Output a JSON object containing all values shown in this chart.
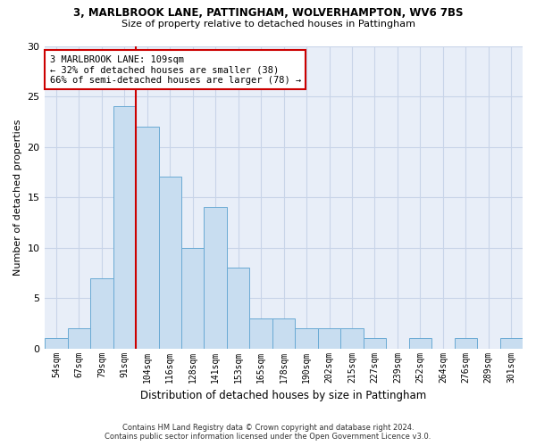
{
  "title1": "3, MARLBROOK LANE, PATTINGHAM, WOLVERHAMPTON, WV6 7BS",
  "title2": "Size of property relative to detached houses in Pattingham",
  "xlabel": "Distribution of detached houses by size in Pattingham",
  "ylabel": "Number of detached properties",
  "bar_color": "#c8ddf0",
  "bar_edge_color": "#6aaad4",
  "categories": [
    "54sqm",
    "67sqm",
    "79sqm",
    "91sqm",
    "104sqm",
    "116sqm",
    "128sqm",
    "141sqm",
    "153sqm",
    "165sqm",
    "178sqm",
    "190sqm",
    "202sqm",
    "215sqm",
    "227sqm",
    "239sqm",
    "252sqm",
    "264sqm",
    "276sqm",
    "289sqm",
    "301sqm"
  ],
  "values": [
    1,
    2,
    7,
    24,
    22,
    17,
    10,
    14,
    8,
    3,
    3,
    2,
    2,
    2,
    1,
    0,
    1,
    0,
    1,
    0,
    1
  ],
  "ylim": [
    0,
    30
  ],
  "yticks": [
    0,
    5,
    10,
    15,
    20,
    25,
    30
  ],
  "property_line_x": 4.5,
  "annotation_title": "3 MARLBROOK LANE: 109sqm",
  "annotation_line1": "← 32% of detached houses are smaller (38)",
  "annotation_line2": "66% of semi-detached houses are larger (78) →",
  "annotation_box_color": "#ffffff",
  "annotation_box_edge": "#cc0000",
  "property_line_color": "#cc0000",
  "grid_color": "#c8d4e8",
  "background_color": "#e8eef8",
  "footnote1": "Contains HM Land Registry data © Crown copyright and database right 2024.",
  "footnote2": "Contains public sector information licensed under the Open Government Licence v3.0."
}
